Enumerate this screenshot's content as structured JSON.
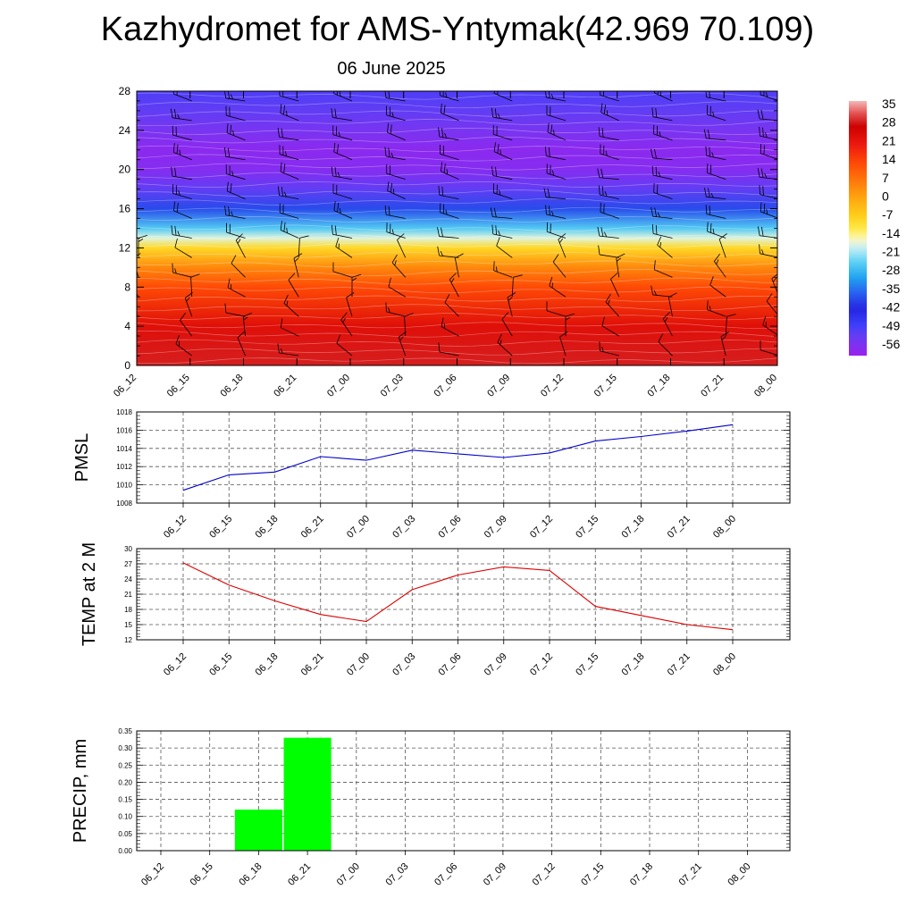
{
  "header": {
    "title": "Kazhydromet for AMS-Yntymak(42.969 70.109)",
    "date": "06 June 2025"
  },
  "colors": {
    "pmsl_line": "#0000cc",
    "temp_line": "#dd0000",
    "precip_bar": "#00ff00",
    "barb": "#000000"
  },
  "chart_data": [
    {
      "type": "heatmap",
      "name_hint": "vertical cross-section",
      "categories": [
        "06_12",
        "06_15",
        "06_18",
        "06_21",
        "07_00",
        "07_03",
        "07_06",
        "07_09",
        "07_12",
        "07_15",
        "07_18",
        "07_21",
        "08_00"
      ],
      "yticks": [
        0,
        4,
        8,
        12,
        16,
        20,
        24,
        28
      ],
      "ylim": [
        0,
        28
      ],
      "colorbar_labels": [
        "35",
        "28",
        "21",
        "14",
        "7",
        "0",
        "-7",
        "-14",
        "-21",
        "-28",
        "-35",
        "-42",
        "-49",
        "-56"
      ],
      "colorbar_range": [
        -60,
        38
      ],
      "temperature_profile": [
        {
          "level": 0,
          "value": 30
        },
        {
          "level": 4,
          "value": 24
        },
        {
          "level": 8,
          "value": 14
        },
        {
          "level": 10,
          "value": 5
        },
        {
          "level": 12,
          "value": -8
        },
        {
          "level": 13,
          "value": -17
        },
        {
          "level": 14,
          "value": -25
        },
        {
          "level": 16,
          "value": -38
        },
        {
          "level": 18,
          "value": -52
        },
        {
          "level": 20,
          "value": -57
        },
        {
          "level": 22,
          "value": -58
        },
        {
          "level": 24,
          "value": -55
        },
        {
          "level": 26,
          "value": -52
        },
        {
          "level": 28,
          "value": -50
        }
      ],
      "barb_levels": [
        1,
        3,
        5,
        7,
        9,
        11,
        13,
        15,
        17,
        19,
        21,
        23,
        25,
        27
      ]
    },
    {
      "type": "line",
      "ylabel": "PMSL",
      "categories": [
        "06_12",
        "06_15",
        "06_18",
        "06_21",
        "07_00",
        "07_03",
        "07_06",
        "07_09",
        "07_12",
        "07_15",
        "07_18",
        "07_21",
        "08_00"
      ],
      "values": [
        1009.4,
        1011.1,
        1011.4,
        1013.1,
        1012.7,
        1013.8,
        1013.4,
        1013.0,
        1013.5,
        1014.8,
        1015.3,
        1015.9,
        1016.6
      ],
      "yticks": [
        1008,
        1010,
        1012,
        1014,
        1016,
        1018
      ],
      "ylim": [
        1008,
        1018
      ],
      "grid": true
    },
    {
      "type": "line",
      "ylabel": "TEMP at 2 M",
      "categories": [
        "06_12",
        "06_15",
        "06_18",
        "06_21",
        "07_00",
        "07_03",
        "07_06",
        "07_09",
        "07_12",
        "07_15",
        "07_18",
        "07_21",
        "08_00"
      ],
      "values": [
        27.2,
        22.8,
        19.7,
        17.0,
        15.6,
        21.9,
        24.8,
        26.4,
        25.7,
        18.6,
        16.8,
        15.0,
        14.0
      ],
      "yticks": [
        12,
        15,
        18,
        21,
        24,
        27,
        30
      ],
      "ylim": [
        12,
        30
      ],
      "grid": true
    },
    {
      "type": "bar",
      "ylabel": "PRECIP, mm",
      "categories": [
        "06_12",
        "06_15",
        "06_18",
        "06_21",
        "07_00",
        "07_03",
        "07_06",
        "07_09",
        "07_12",
        "07_15",
        "07_18",
        "07_21",
        "08_00"
      ],
      "values": [
        0,
        0,
        0.12,
        0.33,
        0,
        0,
        0,
        0,
        0,
        0,
        0,
        0,
        0
      ],
      "yticks": [
        "0.00",
        "0.05",
        "0.10",
        "0.15",
        "0.20",
        "0.25",
        "0.30",
        "0.35"
      ],
      "ylim": [
        0,
        0.35
      ],
      "grid": true
    }
  ]
}
